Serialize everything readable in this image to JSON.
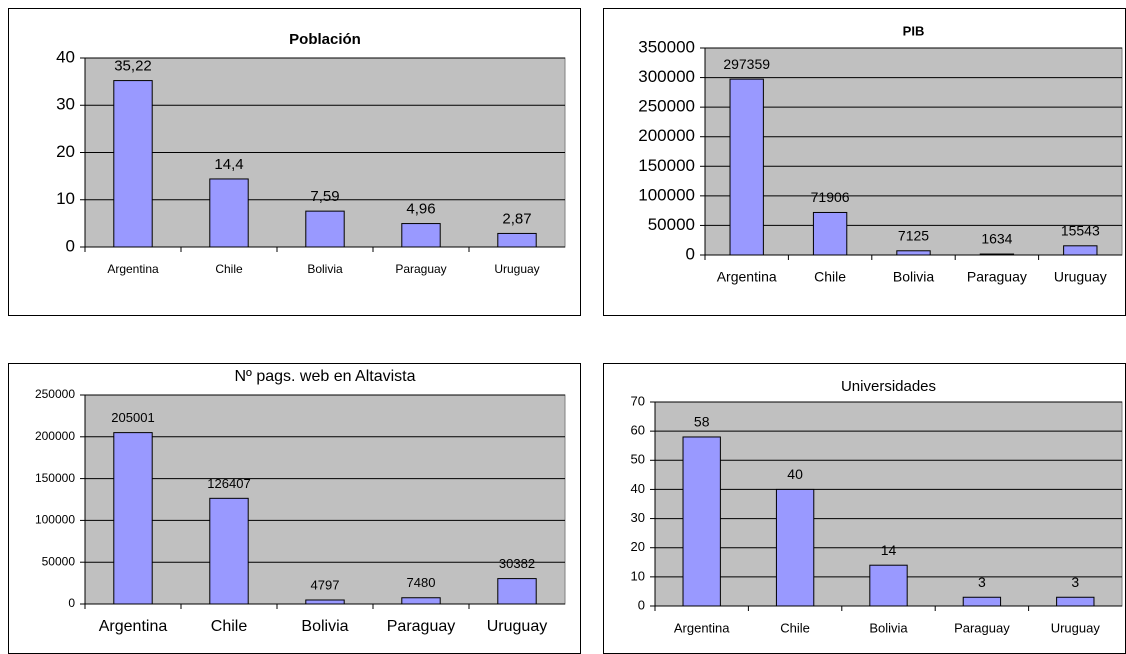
{
  "chart_data": [
    {
      "type": "bar",
      "title": "Población",
      "categories": [
        "Argentina",
        "Chile",
        "Bolivia",
        "Paraguay",
        "Uruguay"
      ],
      "values": [
        35.22,
        14.4,
        7.59,
        4.96,
        2.87
      ],
      "value_labels": [
        "35,22",
        "14,4",
        "7,59",
        "4,96",
        "2,87"
      ],
      "color": "#9999ff",
      "ylim": [
        0,
        40
      ],
      "yticks": [
        0,
        10,
        20,
        30,
        40
      ],
      "grid": true
    },
    {
      "type": "bar",
      "title": "PIB",
      "categories": [
        "Argentina",
        "Chile",
        "Bolivia",
        "Paraguay",
        "Uruguay"
      ],
      "values": [
        297359,
        71906,
        7125,
        1634,
        15543
      ],
      "color": "#9999ff",
      "ylim": [
        0,
        350000
      ],
      "yticks": [
        0,
        50000,
        100000,
        150000,
        200000,
        250000,
        300000,
        350000
      ],
      "grid": true
    },
    {
      "type": "bar",
      "title": "Nº pags. web en Altavista",
      "categories": [
        "Argentina",
        "Chile",
        "Bolivia",
        "Paraguay",
        "Uruguay"
      ],
      "values": [
        205001,
        126407,
        4797,
        7480,
        30382
      ],
      "color": "#9999ff",
      "ylim": [
        0,
        250000
      ],
      "yticks": [
        0,
        50000,
        100000,
        150000,
        200000,
        250000
      ],
      "grid": true
    },
    {
      "type": "bar",
      "title": "Universidades",
      "categories": [
        "Argentina",
        "Chile",
        "Bolivia",
        "Paraguay",
        "Uruguay"
      ],
      "values": [
        58,
        40,
        14,
        3,
        3
      ],
      "color": "#9999ff",
      "ylim": [
        0,
        70
      ],
      "yticks": [
        0,
        10,
        20,
        30,
        40,
        50,
        60,
        70
      ],
      "grid": true
    }
  ]
}
